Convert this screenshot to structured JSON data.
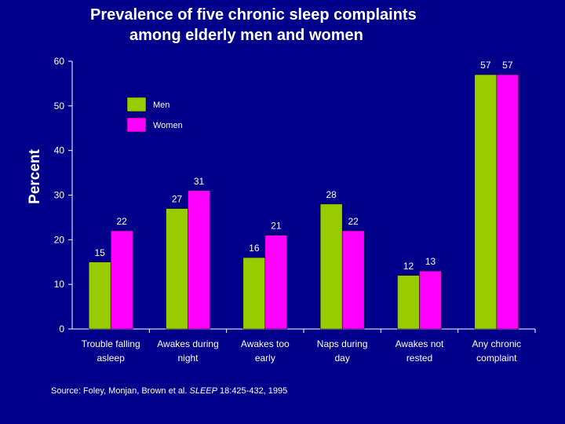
{
  "title": {
    "line1": "Prevalence of five chronic sleep complaints",
    "line2": "among elderly men and women"
  },
  "source": {
    "prefix": "Source: Foley, Monjan, Brown et al. ",
    "journal": "SLEEP",
    "suffix": " 18:425-432, 1995"
  },
  "colors": {
    "background": "#00008b",
    "men": "#99cc00",
    "women": "#ff00ff",
    "text": "#ffffff"
  },
  "chart_data": {
    "type": "bar",
    "ylabel": "Percent",
    "xlabel": "",
    "ylim": [
      0,
      60
    ],
    "yticks": [
      0,
      10,
      20,
      30,
      40,
      50,
      60
    ],
    "grid": false,
    "legend_position": "top-left",
    "categories": [
      [
        "Trouble falling",
        "asleep"
      ],
      [
        "Awakes during",
        "night"
      ],
      [
        "Awakes too",
        "early"
      ],
      [
        "Naps during",
        "day"
      ],
      [
        "Awakes not",
        "rested"
      ],
      [
        "Any chronic",
        "complaint"
      ]
    ],
    "series": [
      {
        "name": "Men",
        "values": [
          15,
          27,
          16,
          28,
          12,
          57
        ]
      },
      {
        "name": "Women",
        "values": [
          22,
          31,
          21,
          22,
          13,
          57
        ]
      }
    ]
  }
}
